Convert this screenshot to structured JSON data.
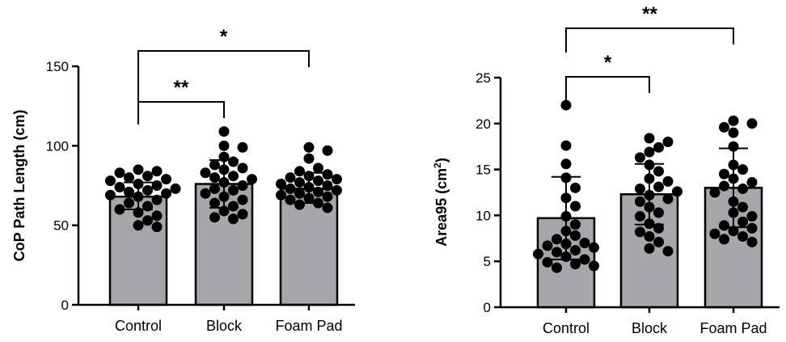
{
  "chart_data": [
    {
      "type": "bar",
      "categories": [
        "Control",
        "Block",
        "Foam Pad"
      ],
      "values": [
        68,
        76,
        73
      ],
      "error_bars": [
        [
          60,
          77
        ],
        [
          61,
          91
        ],
        [
          64,
          83
        ]
      ],
      "ylabel": "CoP Path Length (cm)",
      "ylim": [
        0,
        150
      ],
      "yticks": [
        "0",
        "50",
        "100",
        "150"
      ],
      "points": [
        [
          85,
          84,
          83,
          81,
          80,
          79,
          78,
          76,
          75,
          74,
          73,
          72,
          71,
          70,
          69,
          68,
          66,
          64,
          62,
          60,
          58,
          56,
          53,
          50,
          49
        ],
        [
          109,
          100,
          99,
          93,
          90,
          88,
          86,
          85,
          83,
          81,
          80,
          79,
          77,
          75,
          73,
          72,
          70,
          68,
          66,
          64,
          62,
          59,
          57,
          55,
          54
        ],
        [
          99,
          97,
          92,
          86,
          84,
          82,
          81,
          80,
          79,
          78,
          77,
          76,
          75,
          74,
          73,
          72,
          71,
          70,
          69,
          68,
          67,
          66,
          64,
          63,
          61
        ]
      ],
      "significance": [
        {
          "from": 0,
          "to": 1,
          "label": "**"
        },
        {
          "from": 0,
          "to": 2,
          "label": "*"
        }
      ]
    },
    {
      "type": "bar",
      "categories": [
        "Control",
        "Block",
        "Foam Pad"
      ],
      "values": [
        9.7,
        12.3,
        13.0
      ],
      "error_bars": [
        [
          5.2,
          14.2
        ],
        [
          9.0,
          15.6
        ],
        [
          8.7,
          17.3
        ]
      ],
      "ylabel": "Area95 (cm",
      "ylabel_sup": "2",
      "ylabel_end": ")",
      "ylim": [
        0,
        25
      ],
      "yticks": [
        "0",
        "5",
        "10",
        "15",
        "20",
        "25"
      ],
      "points": [
        [
          22.0,
          17.6,
          15.6,
          14.1,
          13.0,
          11.9,
          11.0,
          9.9,
          9.0,
          8.3,
          7.8,
          7.4,
          7.0,
          6.9,
          6.7,
          6.5,
          6.2,
          6.0,
          5.8,
          5.5,
          5.2,
          4.9,
          4.7,
          4.5,
          4.3
        ],
        [
          18.4,
          18.0,
          17.4,
          16.9,
          16.3,
          15.5,
          14.8,
          14.0,
          13.7,
          13.1,
          12.9,
          12.6,
          12.2,
          11.8,
          11.5,
          10.9,
          10.3,
          9.9,
          9.1,
          8.6,
          8.2,
          7.7,
          7.1,
          6.4,
          6.1
        ],
        [
          20.3,
          20.0,
          19.6,
          19.0,
          17.5,
          15.5,
          15.0,
          14.5,
          14.0,
          13.6,
          13.2,
          12.9,
          12.5,
          11.5,
          10.9,
          10.3,
          9.9,
          9.3,
          8.9,
          8.6,
          8.3,
          8.0,
          7.7,
          7.4,
          7.1
        ]
      ],
      "significance": [
        {
          "from": 0,
          "to": 1,
          "label": "*"
        },
        {
          "from": 0,
          "to": 2,
          "label": "**"
        }
      ]
    }
  ]
}
